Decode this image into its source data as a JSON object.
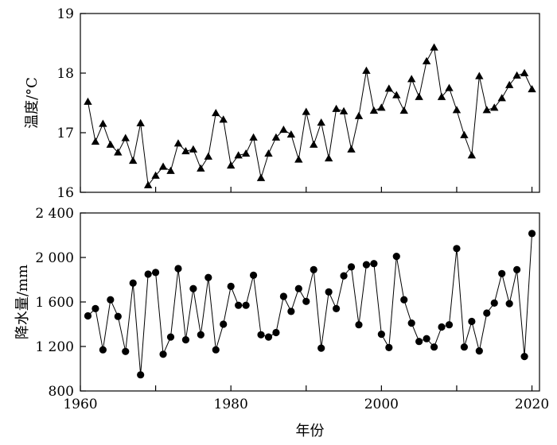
{
  "chart_data": [
    {
      "type": "line",
      "marker": "triangle",
      "ylabel": "温度/°C",
      "xlabel": "",
      "xlim": [
        1960,
        2021
      ],
      "ylim": [
        16,
        19
      ],
      "x_ticks": [
        1960,
        1980,
        2000,
        2020
      ],
      "y_ticks": [
        16,
        17,
        18,
        19
      ],
      "y_tick_labels": [
        "16",
        "17",
        "18",
        "19"
      ],
      "grid": false,
      "legend": "none",
      "color": "#000000",
      "series": [
        {
          "x": [
            1961,
            1962,
            1963,
            1964,
            1965,
            1966,
            1967,
            1968,
            1969,
            1970,
            1971,
            1972,
            1973,
            1974,
            1975,
            1976,
            1977,
            1978,
            1979,
            1980,
            1981,
            1982,
            1983,
            1984,
            1985,
            1986,
            1987,
            1988,
            1989,
            1990,
            1991,
            1992,
            1993,
            1994,
            1995,
            1996,
            1997,
            1998,
            1999,
            2000,
            2001,
            2002,
            2003,
            2004,
            2005,
            2006,
            2007,
            2008,
            2009,
            2010,
            2011,
            2012,
            2013,
            2014,
            2015,
            2016,
            2017,
            2018,
            2019,
            2020
          ],
          "values": [
            17.52,
            16.85,
            17.15,
            16.8,
            16.67,
            16.91,
            16.53,
            17.16,
            16.12,
            16.28,
            16.43,
            16.36,
            16.82,
            16.69,
            16.72,
            16.4,
            16.6,
            17.33,
            17.22,
            16.45,
            16.62,
            16.65,
            16.92,
            16.24,
            16.65,
            16.92,
            17.05,
            16.97,
            16.55,
            17.35,
            16.8,
            17.17,
            16.57,
            17.4,
            17.36,
            16.72,
            17.28,
            18.04,
            17.37,
            17.42,
            17.74,
            17.63,
            17.37,
            17.9,
            17.6,
            18.2,
            18.43,
            17.6,
            17.75,
            17.38,
            16.96,
            16.62,
            17.95,
            17.38,
            17.42,
            17.58,
            17.8,
            17.96,
            18.0,
            17.73
          ]
        }
      ]
    },
    {
      "type": "line",
      "marker": "circle",
      "ylabel": "降水量/mm",
      "xlabel": "年份",
      "xlim": [
        1960,
        2021
      ],
      "ylim": [
        800,
        2400
      ],
      "x_ticks": [
        1960,
        1980,
        2000,
        2020
      ],
      "x_tick_labels": [
        "1960",
        "1980",
        "2000",
        "2020"
      ],
      "y_ticks": [
        800,
        1200,
        1600,
        2000,
        2400
      ],
      "y_tick_labels": [
        "800",
        "1 200",
        "1 600",
        "2 000",
        "2 400"
      ],
      "grid": false,
      "legend": "none",
      "color": "#000000",
      "series": [
        {
          "x": [
            1961,
            1962,
            1963,
            1964,
            1965,
            1966,
            1967,
            1968,
            1969,
            1970,
            1971,
            1972,
            1973,
            1974,
            1975,
            1976,
            1977,
            1978,
            1979,
            1980,
            1981,
            1982,
            1983,
            1984,
            1985,
            1986,
            1987,
            1988,
            1989,
            1990,
            1991,
            1992,
            1993,
            1994,
            1995,
            1996,
            1997,
            1998,
            1999,
            2000,
            2001,
            2002,
            2003,
            2004,
            2005,
            2006,
            2007,
            2008,
            2009,
            2010,
            2011,
            2012,
            2013,
            2014,
            2015,
            2016,
            2017,
            2018,
            2019,
            2020
          ],
          "values": [
            1475,
            1540,
            1170,
            1620,
            1470,
            1155,
            1770,
            945,
            1850,
            1865,
            1130,
            1285,
            1900,
            1260,
            1720,
            1305,
            1820,
            1170,
            1400,
            1740,
            1570,
            1570,
            1840,
            1305,
            1285,
            1325,
            1650,
            1515,
            1720,
            1605,
            1890,
            1185,
            1690,
            1540,
            1835,
            1915,
            1395,
            1935,
            1945,
            1310,
            1190,
            2010,
            1620,
            1410,
            1245,
            1270,
            1195,
            1375,
            1395,
            2080,
            1195,
            1425,
            1160,
            1500,
            1590,
            1855,
            1585,
            1890,
            1110,
            2215
          ]
        }
      ]
    }
  ]
}
